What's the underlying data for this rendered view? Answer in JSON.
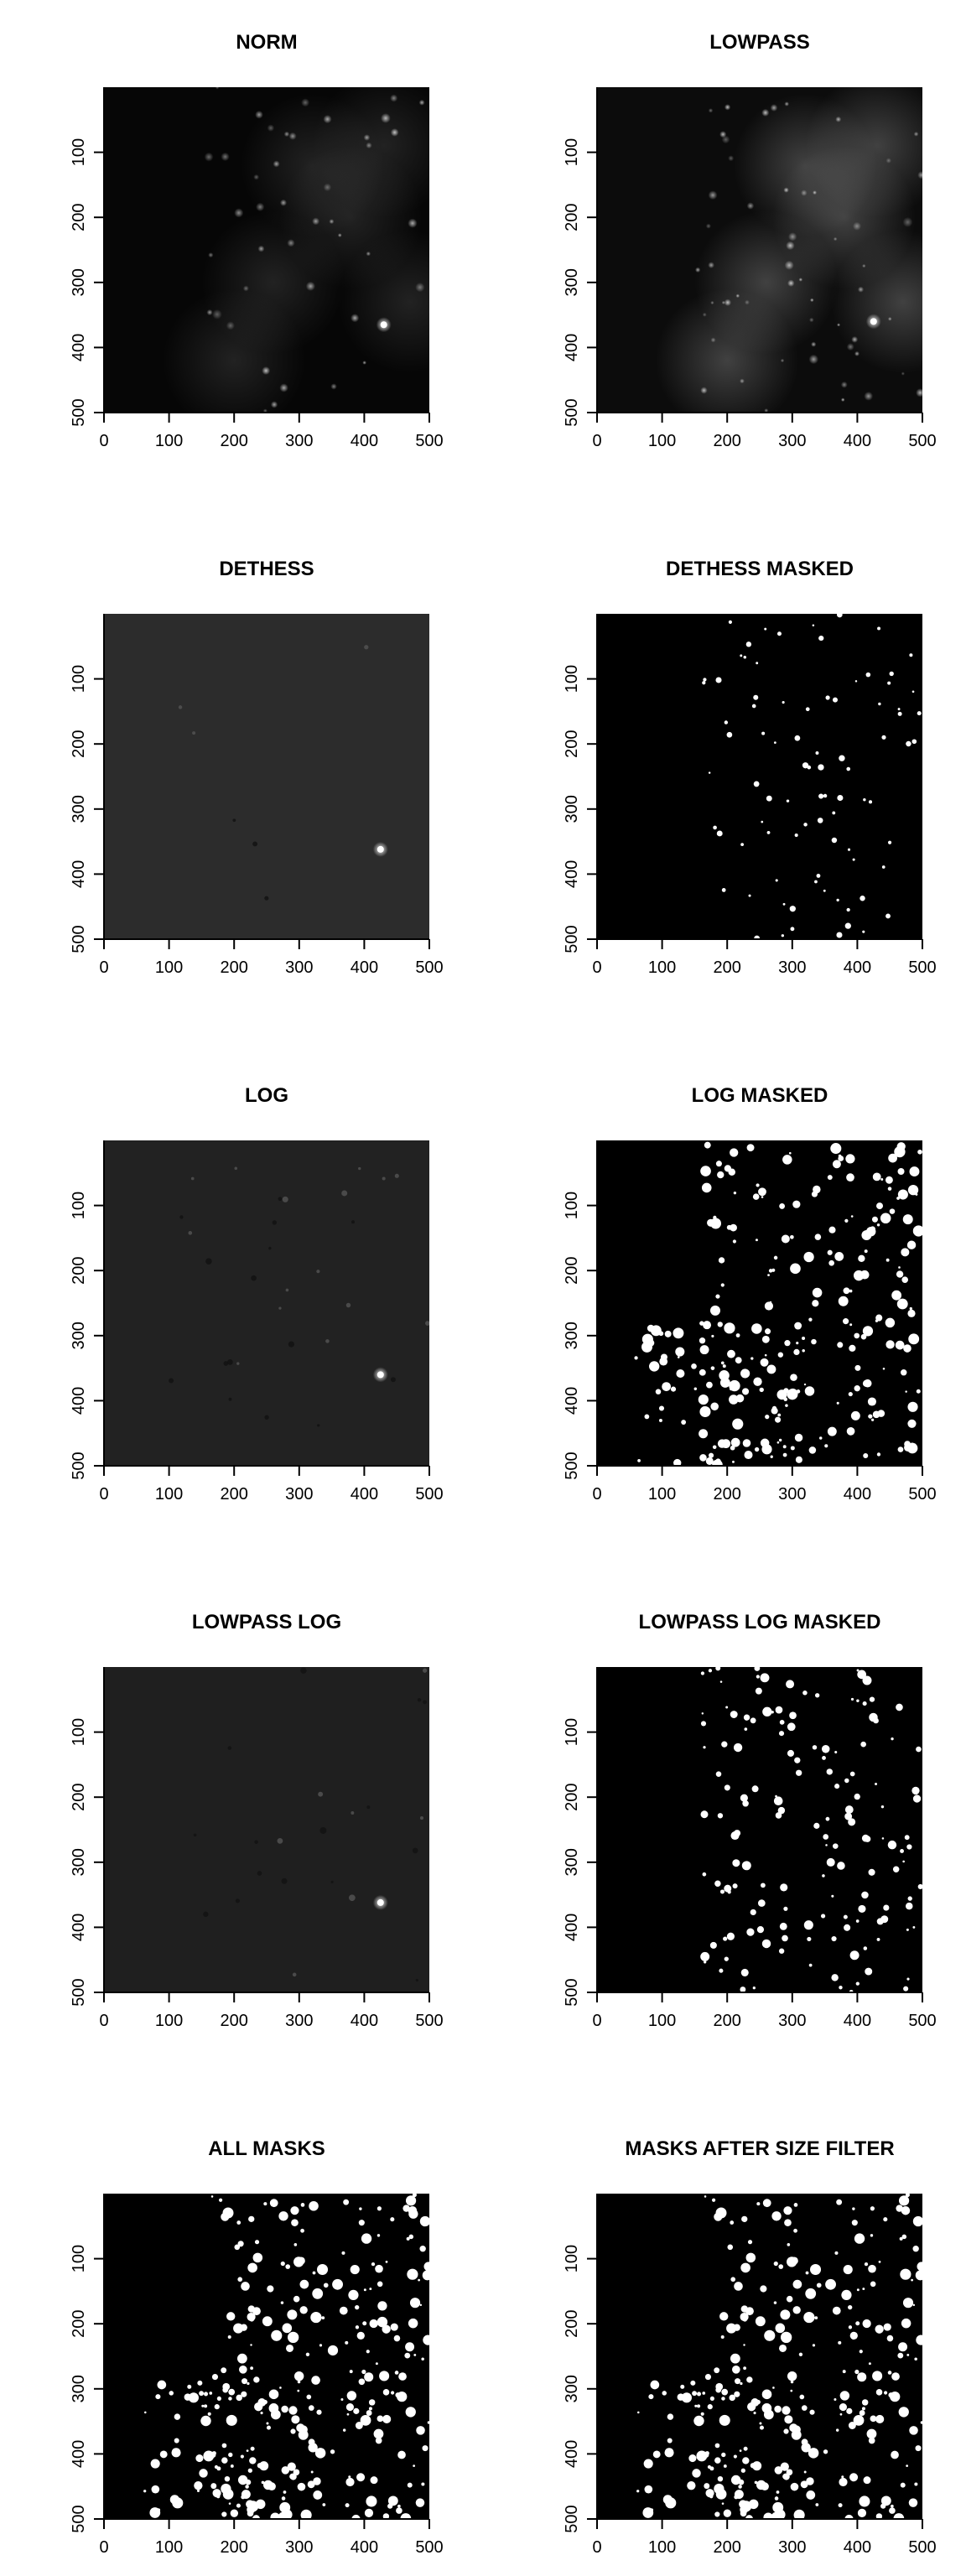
{
  "chart_data": {
    "type": "image",
    "layout": {
      "rows": 5,
      "cols": 2
    },
    "x_axis": {
      "range": [
        0,
        500
      ],
      "ticks": [
        0,
        100,
        200,
        300,
        400,
        500
      ]
    },
    "y_axis": {
      "range": [
        0,
        500
      ],
      "reversed": true,
      "ticks": [
        100,
        200,
        300,
        400,
        500
      ]
    },
    "panels": [
      {
        "title": "NORM",
        "style": "gray",
        "bg": "#060606",
        "haze": 0.28,
        "spots": 42,
        "seed": 11,
        "bright": [
          [
            430,
            365
          ]
        ]
      },
      {
        "title": "LOWPASS",
        "style": "gray",
        "bg": "#0c0c0c",
        "haze": 0.55,
        "spots": 55,
        "seed": 23,
        "bright": [
          [
            425,
            360
          ]
        ]
      },
      {
        "title": "DETHESS",
        "style": "flat",
        "bg": "#2c2c2c",
        "spots": 6,
        "seed": 37,
        "bright": [
          [
            425,
            362
          ]
        ]
      },
      {
        "title": "DETHESS MASKED",
        "style": "mask",
        "bg": "#000000",
        "spots": 85,
        "seed": 41,
        "density": "sparse"
      },
      {
        "title": "LOG",
        "style": "flat",
        "bg": "#222222",
        "spots": 30,
        "seed": 53,
        "bright": [
          [
            425,
            360
          ]
        ]
      },
      {
        "title": "LOG MASKED",
        "style": "mask",
        "bg": "#000000",
        "spots": 260,
        "seed": 67,
        "density": "dense"
      },
      {
        "title": "LOWPASS LOG",
        "style": "flat",
        "bg": "#1f1f1f",
        "spots": 22,
        "seed": 71,
        "bright": [
          [
            425,
            362
          ]
        ]
      },
      {
        "title": "LOWPASS LOG MASKED",
        "style": "mask",
        "bg": "#000000",
        "spots": 150,
        "seed": 83,
        "density": "medium"
      },
      {
        "title": "ALL MASKS",
        "style": "mask",
        "bg": "#000000",
        "spots": 300,
        "seed": 97,
        "density": "dense"
      },
      {
        "title": "MASKS AFTER SIZE FILTER",
        "style": "mask",
        "bg": "#000000",
        "spots": 290,
        "seed": 97,
        "density": "dense"
      }
    ]
  }
}
